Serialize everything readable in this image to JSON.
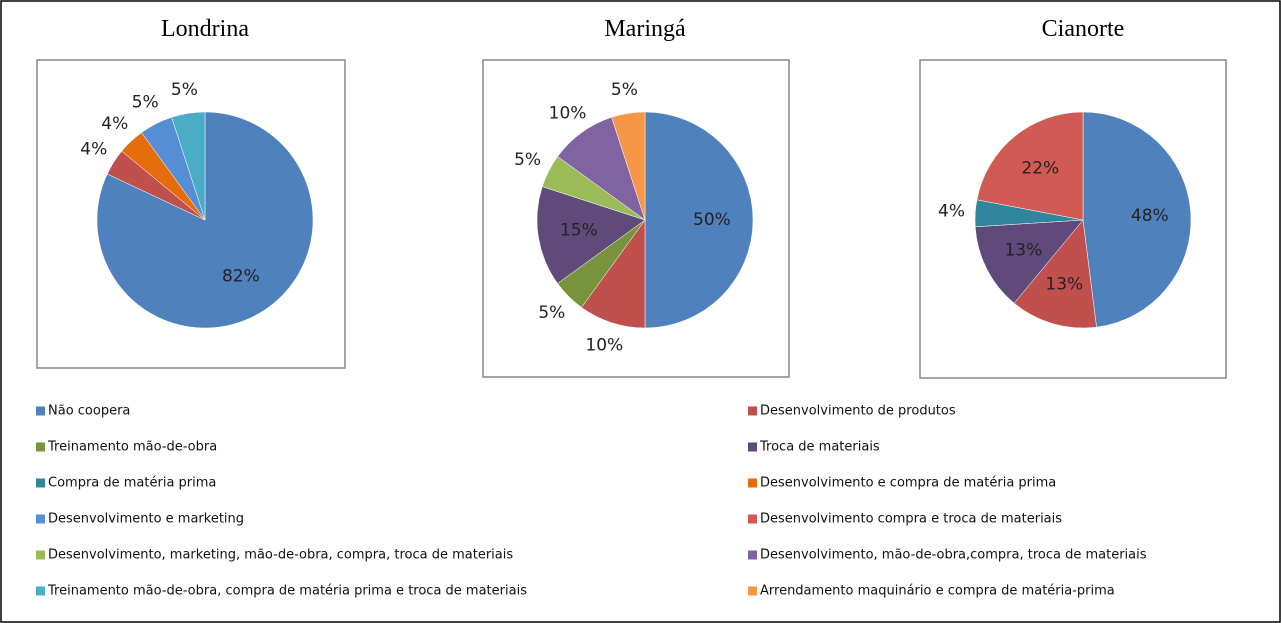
{
  "chart_data": [
    {
      "type": "pie",
      "title": "Londrina",
      "values": [
        82,
        4,
        4,
        5,
        5
      ],
      "value_labels": [
        "82%",
        "4%",
        "4%",
        "5%",
        "5%"
      ],
      "colors": [
        "#4f81bd",
        "#c0504d",
        "#e46c0a",
        "#558ed5",
        "#4bacc6"
      ]
    },
    {
      "type": "pie",
      "title": "Maringá",
      "values": [
        50,
        10,
        5,
        15,
        5,
        10,
        5
      ],
      "value_labels": [
        "50%",
        "10%",
        "5%",
        "15%",
        "5%",
        "10%",
        "5%"
      ],
      "colors": [
        "#4f81bd",
        "#c0504d",
        "#77933c",
        "#604a7b",
        "#9bbb59",
        "#8064a2",
        "#f79646"
      ]
    },
    {
      "type": "pie",
      "title": "Cianorte",
      "values": [
        48,
        13,
        13,
        4,
        22
      ],
      "value_labels": [
        "48%",
        "13%",
        "13%",
        "4%",
        "22%"
      ],
      "colors": [
        "#4f81bd",
        "#c0504d",
        "#604a7b",
        "#31859c",
        "#d25a55"
      ]
    }
  ],
  "legend": [
    {
      "name": "Não coopera",
      "color": "#4f81bd"
    },
    {
      "name": "Desenvolvimento de produtos",
      "color": "#c0504d"
    },
    {
      "name": "Treinamento mão-de-obra",
      "color": "#77933c"
    },
    {
      "name": "Troca de materiais",
      "color": "#604a7b"
    },
    {
      "name": "Compra de matéria  prima",
      "color": "#31859c"
    },
    {
      "name": "Desenvolvimento e compra de matéria  prima",
      "color": "#e46c0a"
    },
    {
      "name": "Desenvolvimento e marketing",
      "color": "#558ed5"
    },
    {
      "name": "Desenvolvimento compra e troca de materiais",
      "color": "#d25a55"
    },
    {
      "name": "Desenvolvimento, marketing,  mão-de-obra, compra, troca de materiais",
      "color": "#9bbb59"
    },
    {
      "name": "Desenvolvimento, mão-de-obra,compra,  troca de materiais",
      "color": "#8064a2"
    },
    {
      "name": "Treinamento mão-de-obra,  compra de matéria  prima e troca de materiais",
      "color": "#4bacc6"
    },
    {
      "name": "Arrendamento maquinário  e compra de matéria-prima",
      "color": "#f79646"
    }
  ]
}
